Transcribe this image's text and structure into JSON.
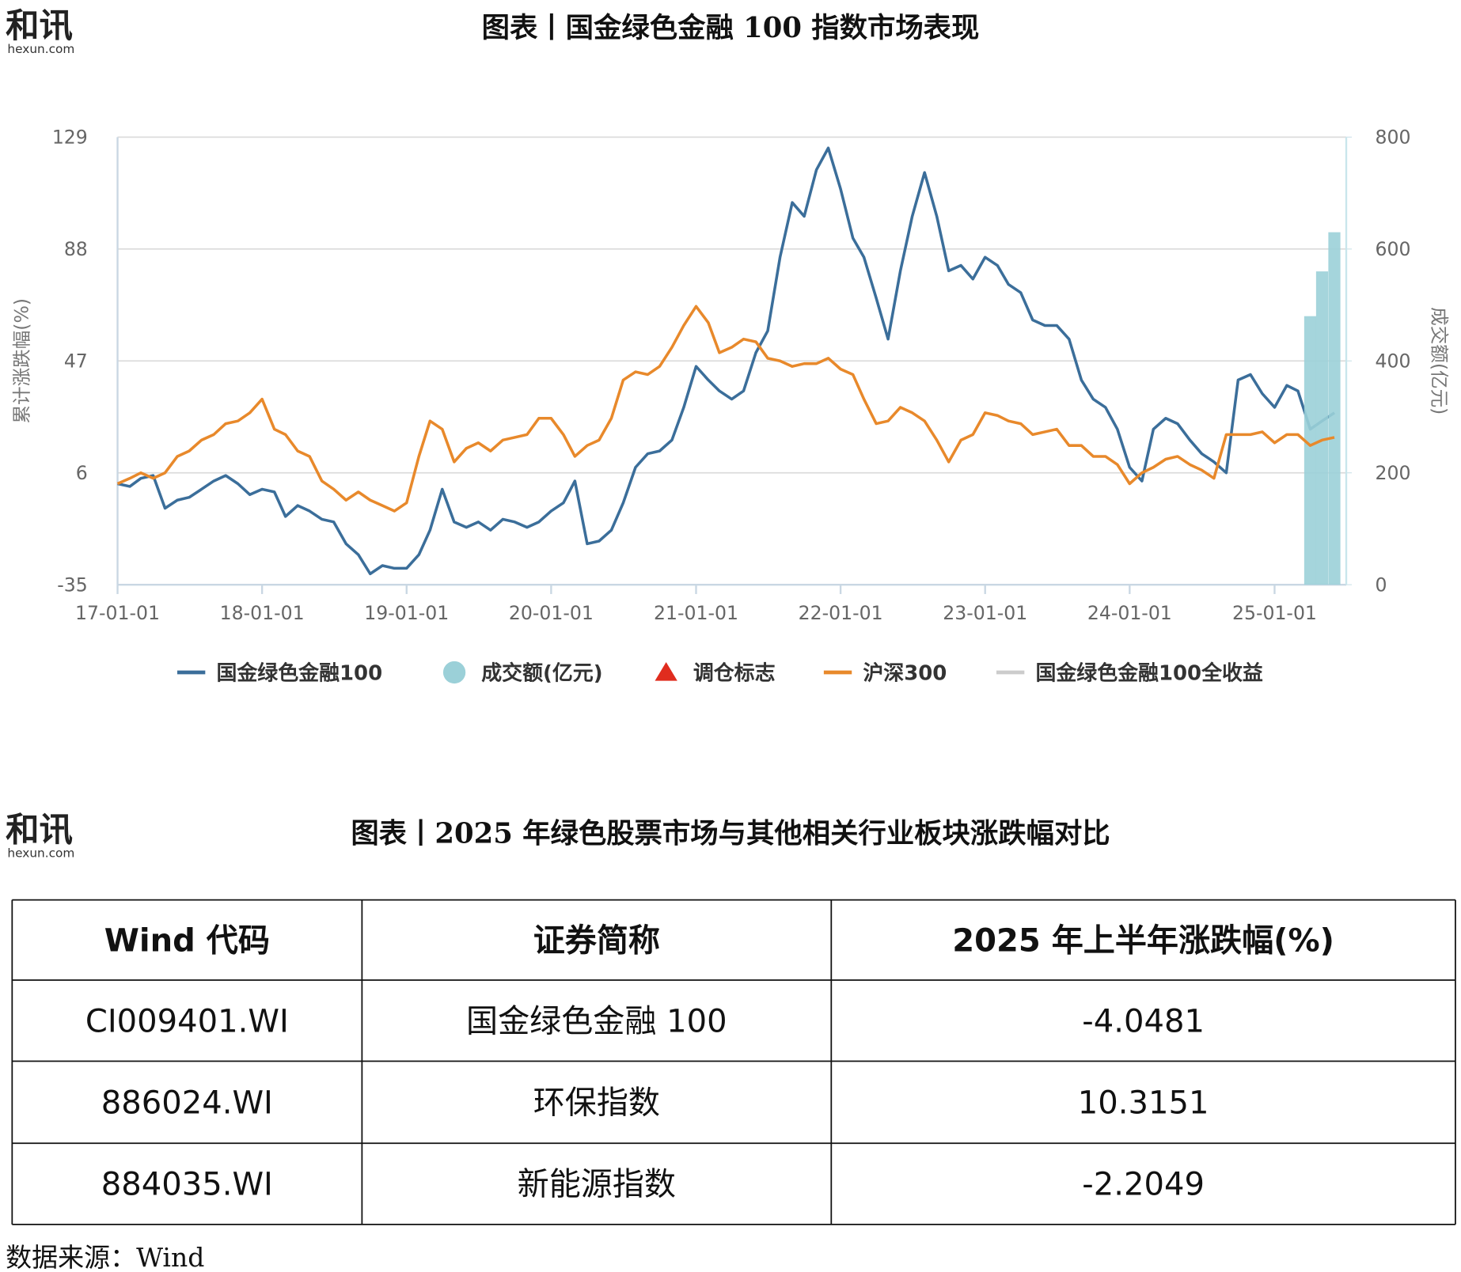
{
  "logo": {
    "brand": "和讯",
    "domain": "hexun.com"
  },
  "chart_title": "图表丨国金绿色金融 100 指数市场表现",
  "chart_data": {
    "type": "line",
    "y_label": "累计涨跌幅(%)",
    "y2_label": "成交额(亿元)",
    "xlim": [
      "17-01-01",
      "25-07-01"
    ],
    "xticks": [
      "17-01-01",
      "18-01-01",
      "19-01-01",
      "20-01-01",
      "21-01-01",
      "22-01-01",
      "23-01-01",
      "24-01-01",
      "25-01-01"
    ],
    "ylim": [
      -35,
      129
    ],
    "yticks": [
      -35,
      6,
      47,
      88,
      129
    ],
    "y2lim": [
      0,
      800
    ],
    "y2ticks": [
      0,
      200,
      400,
      600,
      800
    ],
    "grid": true,
    "x": [
      "17-01-01",
      "17-02-01",
      "17-03-01",
      "17-04-01",
      "17-05-01",
      "17-06-01",
      "17-07-01",
      "17-08-01",
      "17-09-01",
      "17-10-01",
      "17-11-01",
      "17-12-01",
      "18-01-01",
      "18-02-01",
      "18-03-01",
      "18-04-01",
      "18-05-01",
      "18-06-01",
      "18-07-01",
      "18-08-01",
      "18-09-01",
      "18-10-01",
      "18-11-01",
      "18-12-01",
      "19-01-01",
      "19-02-01",
      "19-03-01",
      "19-04-01",
      "19-05-01",
      "19-06-01",
      "19-07-01",
      "19-08-01",
      "19-09-01",
      "19-10-01",
      "19-11-01",
      "19-12-01",
      "20-01-01",
      "20-02-01",
      "20-03-01",
      "20-04-01",
      "20-05-01",
      "20-06-01",
      "20-07-01",
      "20-08-01",
      "20-09-01",
      "20-10-01",
      "20-11-01",
      "20-12-01",
      "21-01-01",
      "21-02-01",
      "21-03-01",
      "21-04-01",
      "21-05-01",
      "21-06-01",
      "21-07-01",
      "21-08-01",
      "21-09-01",
      "21-10-01",
      "21-11-01",
      "21-12-01",
      "22-01-01",
      "22-02-01",
      "22-03-01",
      "22-04-01",
      "22-05-01",
      "22-06-01",
      "22-07-01",
      "22-08-01",
      "22-09-01",
      "22-10-01",
      "22-11-01",
      "22-12-01",
      "23-01-01",
      "23-02-01",
      "23-03-01",
      "23-04-01",
      "23-05-01",
      "23-06-01",
      "23-07-01",
      "23-08-01",
      "23-09-01",
      "23-10-01",
      "23-11-01",
      "23-12-01",
      "24-01-01",
      "24-02-01",
      "24-03-01",
      "24-04-01",
      "24-05-01",
      "24-06-01",
      "24-07-01",
      "24-08-01",
      "24-09-01",
      "24-10-01",
      "24-11-01",
      "24-12-01",
      "25-01-01",
      "25-02-01",
      "25-03-01",
      "25-04-01",
      "25-05-01",
      "25-06-01"
    ],
    "series": [
      {
        "name": "国金绿色金融100",
        "color": "#3b6e9a",
        "values": [
          2,
          1,
          4,
          5,
          -7,
          -4,
          -3,
          0,
          3,
          5,
          2,
          -2,
          0,
          -1,
          -10,
          -6,
          -8,
          -11,
          -12,
          -20,
          -24,
          -31,
          -28,
          -29,
          -29,
          -24,
          -15,
          0,
          -12,
          -14,
          -12,
          -15,
          -11,
          -12,
          -14,
          -12,
          -8,
          -5,
          3,
          -20,
          -19,
          -15,
          -5,
          8,
          13,
          14,
          18,
          30,
          45,
          40,
          36,
          33,
          36,
          50,
          58,
          85,
          105,
          100,
          117,
          125,
          110,
          92,
          85,
          70,
          55,
          80,
          100,
          116,
          100,
          80,
          82,
          77,
          85,
          82,
          75,
          72,
          62,
          60,
          60,
          55,
          40,
          33,
          30,
          22,
          8,
          3,
          22,
          26,
          24,
          18,
          13,
          10,
          6,
          40,
          42,
          35,
          30,
          38,
          36,
          22,
          25,
          28
        ]
      },
      {
        "name": "成交额(亿元)",
        "color": "#9bd0d8",
        "axis": "y2",
        "values": [
          null,
          null,
          null,
          null,
          null,
          null,
          null,
          null,
          null,
          null,
          null,
          null,
          null,
          null,
          null,
          null,
          null,
          null,
          null,
          null,
          null,
          null,
          null,
          null,
          null,
          null,
          null,
          null,
          null,
          null,
          null,
          null,
          null,
          null,
          null,
          null,
          null,
          null,
          null,
          null,
          null,
          null,
          null,
          null,
          null,
          null,
          null,
          null,
          null,
          null,
          null,
          null,
          null,
          null,
          null,
          null,
          null,
          null,
          null,
          null,
          null,
          null,
          null,
          null,
          null,
          null,
          null,
          null,
          null,
          null,
          null,
          null,
          null,
          null,
          null,
          null,
          null,
          null,
          null,
          null,
          null,
          null,
          null,
          null,
          null,
          null,
          null,
          null,
          null,
          null,
          null,
          null,
          null,
          null,
          null,
          null,
          null,
          null,
          null,
          480,
          560,
          630
        ]
      },
      {
        "name": "沪深300",
        "color": "#e8892b",
        "values": [
          2,
          4,
          6,
          4,
          6,
          12,
          14,
          18,
          20,
          24,
          25,
          28,
          33,
          22,
          20,
          14,
          12,
          3,
          0,
          -4,
          -1,
          -4,
          -6,
          -8,
          -5,
          12,
          25,
          22,
          10,
          15,
          17,
          14,
          18,
          19,
          20,
          26,
          26,
          20,
          12,
          16,
          18,
          26,
          40,
          43,
          42,
          45,
          52,
          60,
          67,
          61,
          50,
          52,
          55,
          54,
          48,
          47,
          45,
          46,
          46,
          48,
          44,
          42,
          33,
          24,
          25,
          30,
          28,
          25,
          18,
          10,
          18,
          20,
          28,
          27,
          25,
          24,
          20,
          21,
          22,
          16,
          16,
          12,
          12,
          9,
          2,
          6,
          8,
          11,
          12,
          9,
          7,
          4,
          20,
          20,
          20,
          21,
          17,
          20,
          20,
          16,
          18,
          19
        ]
      }
    ],
    "legend_extra": [
      {
        "name": "调仓标志",
        "color": "#e02c1e"
      },
      {
        "name": "国金绿色金融100全收益",
        "color": "#cccccc"
      }
    ]
  },
  "table_title": "图表丨2025 年绿色股票市场与其他相关行业板块涨跌幅对比",
  "table": {
    "header": [
      "Wind 代码",
      "证券简称",
      "2025 年上半年涨跌幅(%)"
    ],
    "rows": [
      [
        "CI009401.WI",
        "国金绿色金融 100",
        -4.0481
      ],
      [
        "886024.WI",
        "环保指数",
        10.3151
      ],
      [
        "884035.WI",
        "新能源指数",
        -2.2049
      ]
    ]
  },
  "source": "数据来源：Wind"
}
